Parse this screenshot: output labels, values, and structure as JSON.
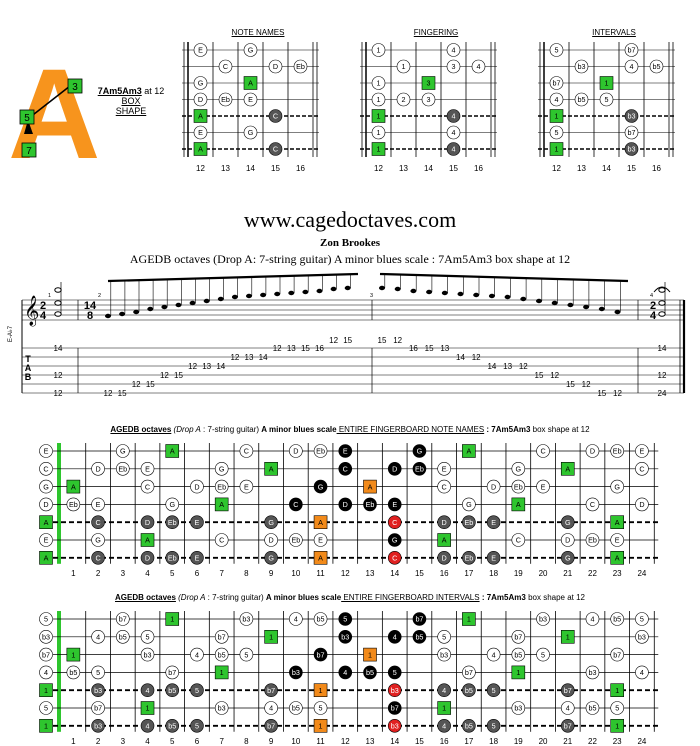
{
  "logo": {
    "letter": "A",
    "letter_color": "#f7941d",
    "markers": [
      {
        "label": "3",
        "color": "#22c55e"
      },
      {
        "label": "5",
        "color": "#22c55e"
      },
      {
        "label": "7",
        "color": "#22c55e"
      }
    ],
    "title": "7Am5Am3",
    "title_suffix": " at 12",
    "line2": "BOX",
    "line3": "SHAPE"
  },
  "mini_diagrams": {
    "frets": [
      "12",
      "13",
      "14",
      "15",
      "16"
    ],
    "panels": [
      {
        "title": "NOTE NAMES",
        "rows": [
          [
            [
              "E",
              "w"
            ],
            null,
            [
              "G",
              "w"
            ],
            null,
            null
          ],
          [
            null,
            [
              "C",
              "w"
            ],
            null,
            [
              "D",
              "w"
            ],
            [
              "Eb",
              "w"
            ]
          ],
          [
            [
              "G",
              "w"
            ],
            null,
            [
              "A",
              "g"
            ],
            null,
            null
          ],
          [
            [
              "D",
              "w"
            ],
            [
              "Eb",
              "w"
            ],
            [
              "E",
              "w"
            ],
            null,
            null
          ],
          [
            [
              "A",
              "g"
            ],
            null,
            null,
            [
              "C",
              "d"
            ],
            null
          ],
          [
            [
              "E",
              "w"
            ],
            null,
            [
              "G",
              "w"
            ],
            null,
            null
          ],
          [
            [
              "A",
              "g"
            ],
            null,
            null,
            [
              "C",
              "d"
            ],
            null
          ]
        ]
      },
      {
        "title": "FINGERING",
        "rows": [
          [
            [
              "1",
              "w"
            ],
            null,
            null,
            [
              "4",
              "w"
            ],
            null
          ],
          [
            null,
            [
              "1",
              "w"
            ],
            null,
            [
              "3",
              "w"
            ],
            [
              "4",
              "w"
            ]
          ],
          [
            [
              "1",
              "w"
            ],
            null,
            [
              "3",
              "g"
            ],
            null,
            null
          ],
          [
            [
              "1",
              "w"
            ],
            [
              "2",
              "w"
            ],
            [
              "3",
              "w"
            ],
            null,
            null
          ],
          [
            [
              "1",
              "g"
            ],
            null,
            null,
            [
              "4",
              "d"
            ],
            null
          ],
          [
            [
              "1",
              "w"
            ],
            null,
            null,
            [
              "4",
              "w"
            ],
            null
          ],
          [
            [
              "1",
              "g"
            ],
            null,
            null,
            [
              "4",
              "d"
            ],
            null
          ]
        ]
      },
      {
        "title": "INTERVALS",
        "rows": [
          [
            [
              "5",
              "w"
            ],
            null,
            null,
            [
              "b7",
              "w"
            ],
            null
          ],
          [
            null,
            [
              "b3",
              "w"
            ],
            null,
            [
              "4",
              "w"
            ],
            [
              "b5",
              "w"
            ]
          ],
          [
            [
              "b7",
              "w"
            ],
            null,
            [
              "1",
              "g"
            ],
            null,
            null
          ],
          [
            [
              "4",
              "w"
            ],
            [
              "b5",
              "w"
            ],
            [
              "5",
              "w"
            ],
            null,
            null
          ],
          [
            [
              "1",
              "g"
            ],
            null,
            null,
            [
              "b3",
              "d"
            ],
            null
          ],
          [
            [
              "5",
              "w"
            ],
            null,
            null,
            [
              "b7",
              "w"
            ],
            null
          ],
          [
            [
              "1",
              "g"
            ],
            null,
            null,
            [
              "b3",
              "d"
            ],
            null
          ]
        ]
      }
    ]
  },
  "site_title": "www.cagedoctaves.com",
  "author": "Zon Brookes",
  "subtitle": "AGEDB octaves (Drop A: 7-string guitar) A minor blues scale : 7Am5Am3 box shape at 12",
  "score": {
    "tuning_label": "E-A♭7",
    "clef": "𝄞",
    "tab_letters": [
      "T",
      "A",
      "B"
    ],
    "time_sig_1": [
      "2",
      "4"
    ],
    "time_sig_2": [
      "14",
      "8"
    ],
    "measure_numbers": [
      "1",
      "2",
      "3",
      "4"
    ],
    "tab_numbers_m1": [
      "14",
      "12",
      "12"
    ],
    "tab_numbers_m4": [
      "14",
      "12",
      "24"
    ],
    "tab_run_up": [
      "12",
      "15",
      "12",
      "15",
      "12",
      "15",
      "12",
      "13",
      "14",
      "12",
      "13",
      "14",
      "12",
      "13",
      "15",
      "16",
      "12",
      "15"
    ],
    "tab_run_down": [
      "15",
      "12",
      "16",
      "15",
      "13",
      "14",
      "12",
      "14",
      "13",
      "12",
      "15",
      "12",
      "15",
      "12",
      "15",
      "12"
    ]
  },
  "fretboard_numbers": [
    "1",
    "2",
    "3",
    "4",
    "5",
    "6",
    "7",
    "8",
    "9",
    "10",
    "11",
    "12",
    "13",
    "14",
    "15",
    "16",
    "17",
    "18",
    "19",
    "20",
    "21",
    "22",
    "23",
    "24"
  ],
  "board1": {
    "title_a": "AGEDB octaves",
    "title_b": " (Drop A",
    "title_c": " : 7-string guitar) ",
    "title_d": "A minor blues scale",
    "title_e": " ENTIRE FINGERBOARD NOTE NAMES",
    "title_f": " : 7Am5Am3",
    "title_g": " box shape at 12",
    "open": [
      "E",
      "C",
      "G",
      "D",
      "A",
      "E",
      "A"
    ],
    "rows": [
      [
        null,
        null,
        [
          "G",
          "w"
        ],
        null,
        [
          "A",
          "g"
        ],
        null,
        null,
        [
          "C",
          "w"
        ],
        null,
        [
          "D",
          "w"
        ],
        [
          "Eb",
          "w"
        ],
        [
          "E",
          "b"
        ],
        null,
        null,
        [
          "G",
          "b"
        ],
        null,
        [
          "A",
          "g"
        ],
        null,
        null,
        [
          "C",
          "w"
        ],
        null,
        [
          "D",
          "w"
        ],
        [
          "Eb",
          "w"
        ],
        [
          "E",
          "w"
        ]
      ],
      [
        null,
        [
          "D",
          "w"
        ],
        [
          "Eb",
          "w"
        ],
        [
          "E",
          "w"
        ],
        null,
        null,
        [
          "G",
          "w"
        ],
        null,
        [
          "A",
          "g"
        ],
        null,
        null,
        [
          "C",
          "b"
        ],
        null,
        [
          "D",
          "b"
        ],
        [
          "Eb",
          "b"
        ],
        [
          "E",
          "w"
        ],
        null,
        null,
        [
          "G",
          "w"
        ],
        null,
        [
          "A",
          "g"
        ],
        null,
        null,
        [
          "C",
          "w"
        ]
      ],
      [
        [
          "A",
          "g"
        ],
        null,
        null,
        [
          "C",
          "w"
        ],
        null,
        [
          "D",
          "w"
        ],
        [
          "Eb",
          "w"
        ],
        [
          "E",
          "w"
        ],
        null,
        null,
        [
          "G",
          "b"
        ],
        null,
        [
          "A",
          "o"
        ],
        null,
        null,
        [
          "C",
          "w"
        ],
        null,
        [
          "D",
          "w"
        ],
        [
          "Eb",
          "w"
        ],
        [
          "E",
          "w"
        ],
        null,
        null,
        [
          "G",
          "w"
        ],
        null
      ],
      [
        [
          "Eb",
          "w"
        ],
        [
          "E",
          "w"
        ],
        null,
        null,
        [
          "G",
          "w"
        ],
        null,
        [
          "A",
          "g"
        ],
        null,
        null,
        [
          "C",
          "b"
        ],
        null,
        [
          "D",
          "b"
        ],
        [
          "Eb",
          "b"
        ],
        [
          "E",
          "b"
        ],
        null,
        null,
        [
          "G",
          "w"
        ],
        null,
        [
          "A",
          "g"
        ],
        null,
        null,
        [
          "C",
          "w"
        ],
        null,
        [
          "D",
          "w"
        ]
      ],
      [
        null,
        [
          "C",
          "d"
        ],
        null,
        [
          "D",
          "d"
        ],
        [
          "Eb",
          "d"
        ],
        [
          "E",
          "d"
        ],
        null,
        null,
        [
          "G",
          "d"
        ],
        null,
        [
          "A",
          "o"
        ],
        null,
        null,
        [
          "C",
          "r"
        ],
        null,
        [
          "D",
          "d"
        ],
        [
          "Eb",
          "d"
        ],
        [
          "E",
          "d"
        ],
        null,
        null,
        [
          "G",
          "d"
        ],
        null,
        [
          "A",
          "g"
        ],
        null
      ],
      [
        null,
        [
          "G",
          "w"
        ],
        null,
        [
          "A",
          "g"
        ],
        null,
        null,
        [
          "C",
          "w"
        ],
        null,
        [
          "D",
          "w"
        ],
        [
          "Eb",
          "w"
        ],
        [
          "E",
          "w"
        ],
        null,
        null,
        [
          "G",
          "b"
        ],
        null,
        [
          "A",
          "g"
        ],
        null,
        null,
        [
          "C",
          "w"
        ],
        null,
        [
          "D",
          "w"
        ],
        [
          "Eb",
          "w"
        ],
        [
          "E",
          "w"
        ],
        null
      ],
      [
        null,
        [
          "C",
          "d"
        ],
        null,
        [
          "D",
          "d"
        ],
        [
          "Eb",
          "d"
        ],
        [
          "E",
          "d"
        ],
        null,
        null,
        [
          "G",
          "d"
        ],
        null,
        [
          "A",
          "o"
        ],
        null,
        null,
        [
          "C",
          "r"
        ],
        null,
        [
          "D",
          "d"
        ],
        [
          "Eb",
          "d"
        ],
        [
          "E",
          "d"
        ],
        null,
        null,
        [
          "G",
          "d"
        ],
        null,
        [
          "A",
          "g"
        ],
        null
      ]
    ]
  },
  "board2": {
    "title_a": "AGEDB octaves",
    "title_b": " (Drop A",
    "title_c": " : 7-string guitar) ",
    "title_d": "A minor blues scale",
    "title_e": " ENTIRE FINGERBOARD INTERVALS",
    "title_f": " : 7Am5Am3",
    "title_g": " box shape at 12",
    "open": [
      "5",
      "b3",
      "b7",
      "4",
      "1",
      "5",
      "1"
    ],
    "rows": [
      [
        null,
        null,
        [
          "b7",
          "w"
        ],
        null,
        [
          "1",
          "g"
        ],
        null,
        null,
        [
          "b3",
          "w"
        ],
        null,
        [
          "4",
          "w"
        ],
        [
          "b5",
          "w"
        ],
        [
          "5",
          "b"
        ],
        null,
        null,
        [
          "b7",
          "b"
        ],
        null,
        [
          "1",
          "g"
        ],
        null,
        null,
        [
          "b3",
          "w"
        ],
        null,
        [
          "4",
          "w"
        ],
        [
          "b5",
          "w"
        ],
        [
          "5",
          "w"
        ]
      ],
      [
        null,
        [
          "4",
          "w"
        ],
        [
          "b5",
          "w"
        ],
        [
          "5",
          "w"
        ],
        null,
        null,
        [
          "b7",
          "w"
        ],
        null,
        [
          "1",
          "g"
        ],
        null,
        null,
        [
          "b3",
          "b"
        ],
        null,
        [
          "4",
          "b"
        ],
        [
          "b5",
          "b"
        ],
        [
          "5",
          "w"
        ],
        null,
        null,
        [
          "b7",
          "w"
        ],
        null,
        [
          "1",
          "g"
        ],
        null,
        null,
        [
          "b3",
          "w"
        ]
      ],
      [
        [
          "1",
          "g"
        ],
        null,
        null,
        [
          "b3",
          "w"
        ],
        null,
        [
          "4",
          "w"
        ],
        [
          "b5",
          "w"
        ],
        [
          "5",
          "w"
        ],
        null,
        null,
        [
          "b7",
          "b"
        ],
        null,
        [
          "1",
          "o"
        ],
        null,
        null,
        [
          "b3",
          "w"
        ],
        null,
        [
          "4",
          "w"
        ],
        [
          "b5",
          "w"
        ],
        [
          "5",
          "w"
        ],
        null,
        null,
        [
          "b7",
          "w"
        ],
        null
      ],
      [
        [
          "b5",
          "w"
        ],
        [
          "5",
          "w"
        ],
        null,
        null,
        [
          "b7",
          "w"
        ],
        null,
        [
          "1",
          "g"
        ],
        null,
        null,
        [
          "b3",
          "b"
        ],
        null,
        [
          "4",
          "b"
        ],
        [
          "b5",
          "b"
        ],
        [
          "5",
          "b"
        ],
        null,
        null,
        [
          "b7",
          "w"
        ],
        null,
        [
          "1",
          "g"
        ],
        null,
        null,
        [
          "b3",
          "w"
        ],
        null,
        [
          "4",
          "w"
        ]
      ],
      [
        null,
        [
          "b3",
          "d"
        ],
        null,
        [
          "4",
          "d"
        ],
        [
          "b5",
          "d"
        ],
        [
          "5",
          "d"
        ],
        null,
        null,
        [
          "b7",
          "d"
        ],
        null,
        [
          "1",
          "o"
        ],
        null,
        null,
        [
          "b3",
          "r"
        ],
        null,
        [
          "4",
          "d"
        ],
        [
          "b5",
          "d"
        ],
        [
          "5",
          "d"
        ],
        null,
        null,
        [
          "b7",
          "d"
        ],
        null,
        [
          "1",
          "g"
        ],
        null
      ],
      [
        null,
        [
          "b7",
          "w"
        ],
        null,
        [
          "1",
          "g"
        ],
        null,
        null,
        [
          "b3",
          "w"
        ],
        null,
        [
          "4",
          "w"
        ],
        [
          "b5",
          "w"
        ],
        [
          "5",
          "w"
        ],
        null,
        null,
        [
          "b7",
          "b"
        ],
        null,
        [
          "1",
          "g"
        ],
        null,
        null,
        [
          "b3",
          "w"
        ],
        null,
        [
          "4",
          "w"
        ],
        [
          "b5",
          "w"
        ],
        [
          "5",
          "w"
        ],
        null
      ],
      [
        null,
        [
          "b3",
          "d"
        ],
        null,
        [
          "4",
          "d"
        ],
        [
          "b5",
          "d"
        ],
        [
          "5",
          "d"
        ],
        null,
        null,
        [
          "b7",
          "d"
        ],
        null,
        [
          "1",
          "o"
        ],
        null,
        null,
        [
          "b3",
          "r"
        ],
        null,
        [
          "4",
          "d"
        ],
        [
          "b5",
          "d"
        ],
        [
          "5",
          "d"
        ],
        null,
        null,
        [
          "b7",
          "d"
        ],
        null,
        [
          "1",
          "g"
        ],
        null
      ]
    ]
  },
  "colors": {
    "green": "#2ec52e",
    "orange": "#f28a1a",
    "red": "#e02020",
    "dark": "#555555",
    "black": "#000000",
    "white": "#ffffff"
  }
}
